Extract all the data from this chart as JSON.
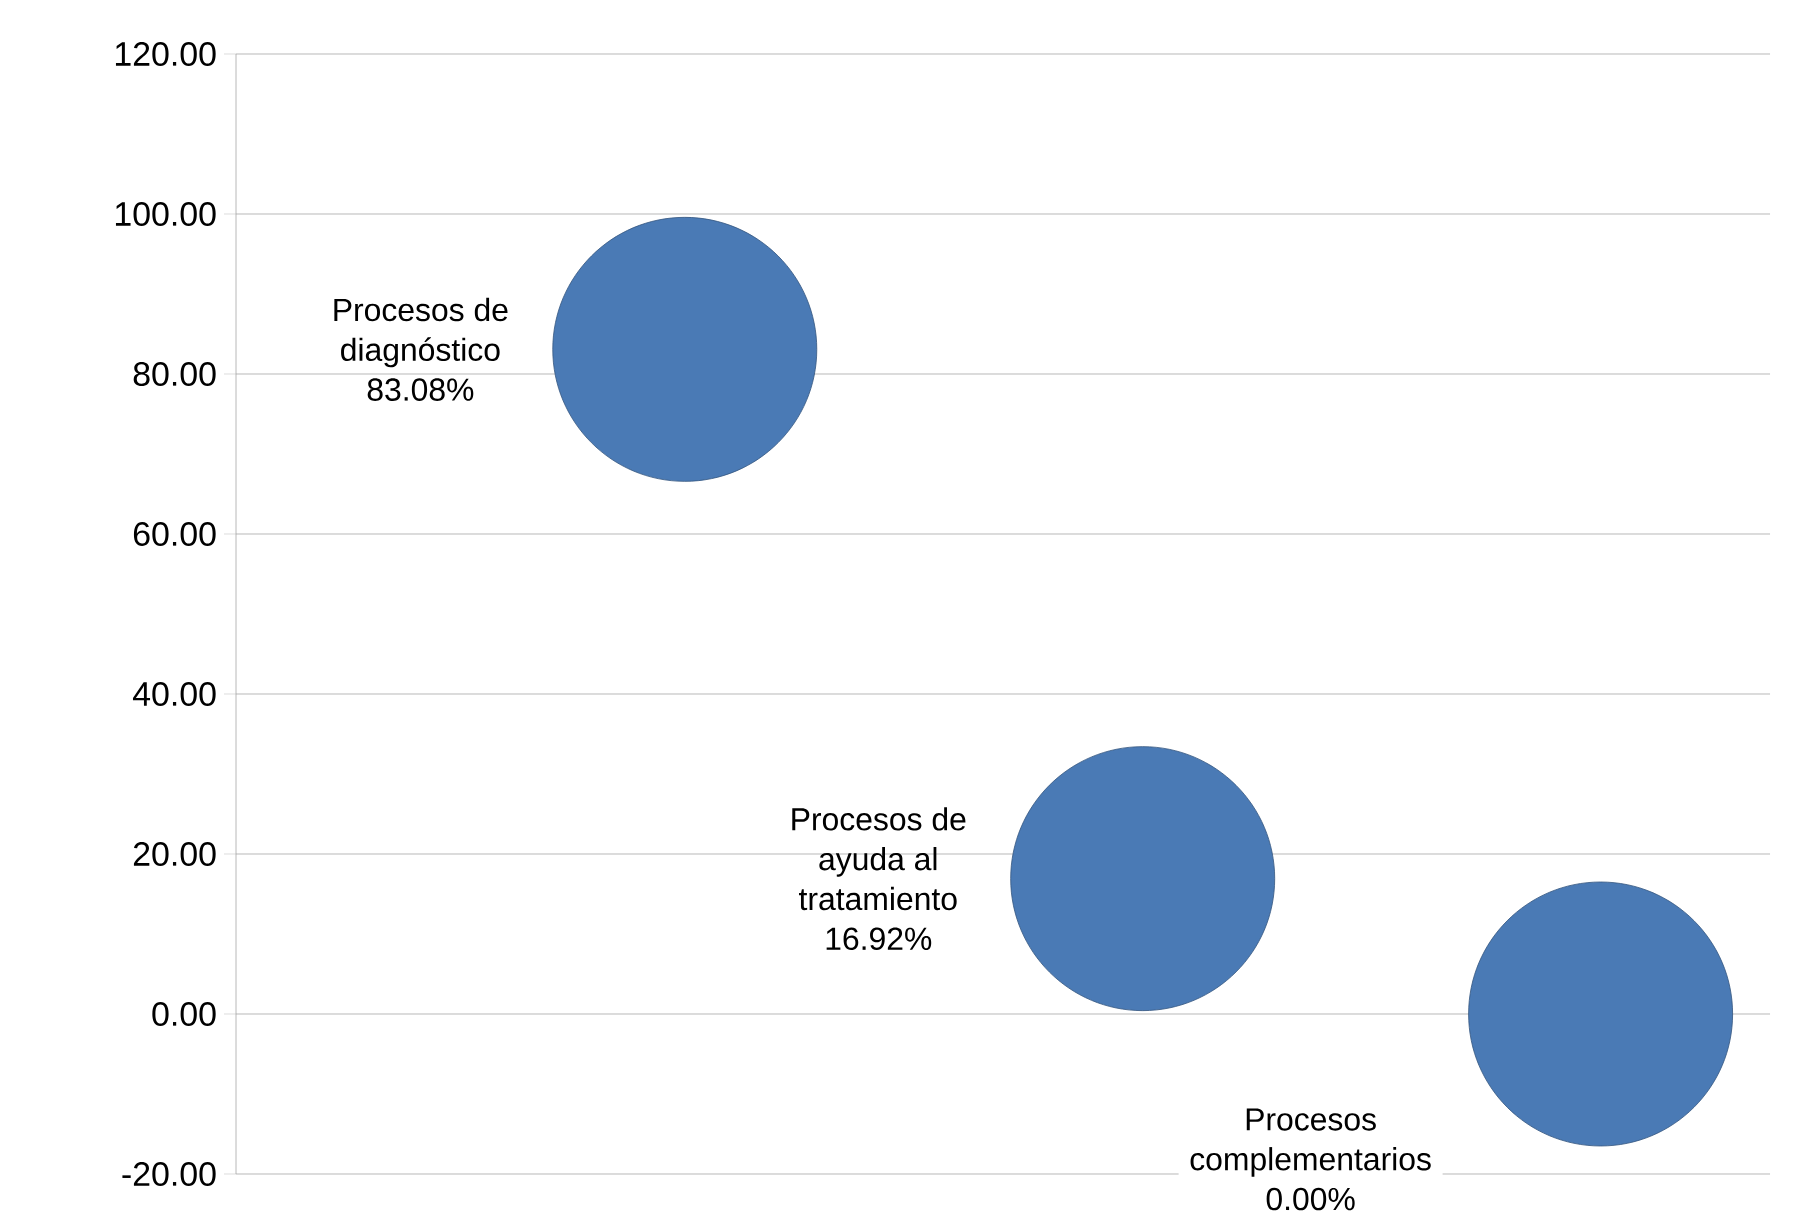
{
  "chart_data": {
    "type": "bubble",
    "categories": [
      null,
      null,
      null
    ],
    "values": [
      83.08,
      16.92,
      0.0
    ],
    "sizes": [
      1,
      1,
      1
    ],
    "value_labels": [
      "Procesos de diagnóstico 83.08%",
      "Procesos de ayuda al tratamiento 16.92%",
      "Procesos complementarios 0.00%"
    ],
    "color": "#4a7ab5",
    "marker": "circle",
    "ylim": [
      -20,
      120
    ],
    "yticks": [
      {
        "value": -20,
        "label": "-20.00"
      },
      {
        "value": 0,
        "label": "0.00"
      },
      {
        "value": 20,
        "label": "20.00"
      },
      {
        "value": 40,
        "label": "40.00"
      },
      {
        "value": 60,
        "label": "60.00"
      },
      {
        "value": 80,
        "label": "80.00"
      },
      {
        "value": 100,
        "label": "100.00"
      },
      {
        "value": 120,
        "label": "120.00"
      }
    ],
    "grid": "y"
  }
}
